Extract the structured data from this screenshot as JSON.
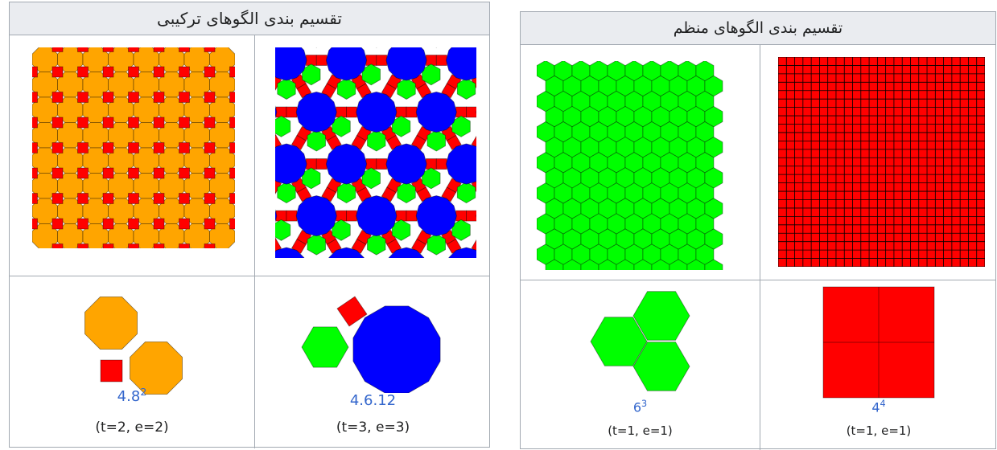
{
  "semi": {
    "title": "تقسیم بندی الگوهای ترکیبی",
    "cells": [
      {
        "notation_base": "4.8",
        "notation_sup": "2",
        "params": "(t=2, e=2)"
      },
      {
        "notation_base": "4.6.12",
        "notation_sup": "",
        "params": "(t=3, e=3)"
      }
    ]
  },
  "regular": {
    "title": "تقسیم بندی الگوهای منظم",
    "cells": [
      {
        "notation_base": "6",
        "notation_sup": "3",
        "params": "(t=1, e=1)"
      },
      {
        "notation_base": "4",
        "notation_sup": "4",
        "params": "(t=1, e=1)"
      }
    ]
  },
  "colors": {
    "orange": "#ffa500",
    "red": "#ff0000",
    "green": "#00ff00",
    "blue": "#0000ff",
    "link": "#3366cc"
  }
}
